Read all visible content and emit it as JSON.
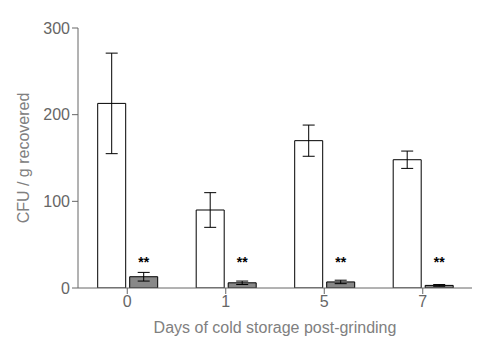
{
  "chart_data": {
    "type": "bar",
    "categories": [
      "0",
      "1",
      "5",
      "7"
    ],
    "xlabel": "Days of cold storage post-grinding",
    "ylabel": "CFU / g recovered",
    "series": [
      {
        "color": "#ffffff",
        "values": [
          213,
          90,
          170,
          148
        ],
        "errors": [
          58,
          20,
          18,
          10
        ]
      },
      {
        "color": "#888888",
        "values": [
          13,
          6,
          7,
          3
        ],
        "errors": [
          5,
          2,
          2,
          1
        ]
      }
    ],
    "ylim": [
      0,
      300
    ],
    "yticks": [
      0,
      100,
      200,
      300
    ],
    "grid": false,
    "annotations": [
      {
        "text": "**",
        "x": "0",
        "y": 30
      },
      {
        "text": "**",
        "x": "1",
        "y": 30
      },
      {
        "text": "**",
        "x": "5",
        "y": 30
      },
      {
        "text": "**",
        "x": "7",
        "y": 30
      }
    ]
  }
}
